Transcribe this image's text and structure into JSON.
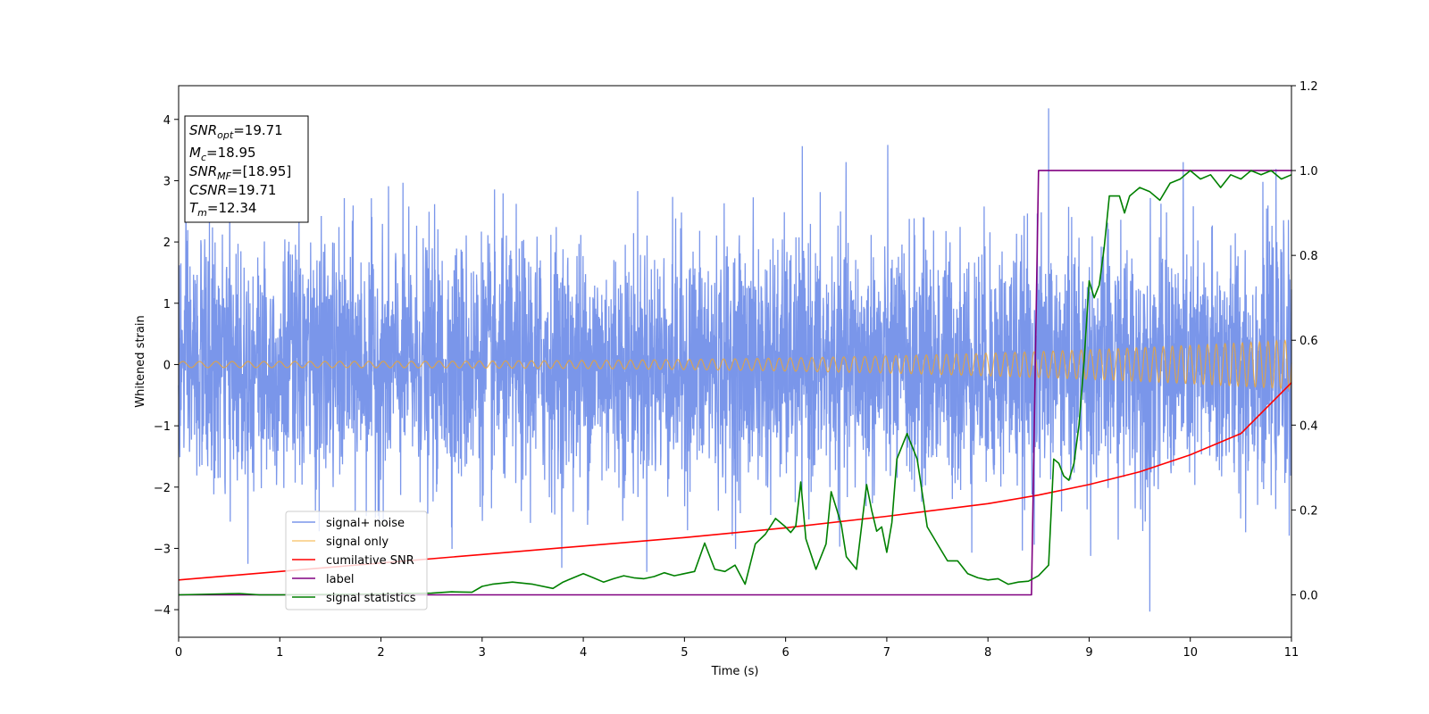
{
  "chart_data": {
    "type": "line",
    "title": "",
    "xlabel": "Time (s)",
    "ylabel": "Whitened strain",
    "y2label": "",
    "xlim": [
      0,
      11
    ],
    "ylim": [
      -4.45,
      4.55
    ],
    "y2lim": [
      -0.1,
      1.2
    ],
    "x_ticks": [
      0,
      1,
      2,
      3,
      4,
      5,
      6,
      7,
      8,
      9,
      10,
      11
    ],
    "y_ticks": [
      -4,
      -3,
      -2,
      -1,
      0,
      1,
      2,
      3,
      4
    ],
    "y2_ticks": [
      "0.0",
      "0.2",
      "0.4",
      "0.6",
      "0.8",
      "1.0",
      "1.2"
    ],
    "grid": false,
    "legend_position": "lower-left",
    "annotation": {
      "lines": [
        {
          "sym": "SNR",
          "sub": "opt",
          "rest": "=19.71"
        },
        {
          "sym": "M",
          "sub": "c",
          "rest": "=18.95"
        },
        {
          "sym": "SNR",
          "sub": "MF",
          "rest": "=[18.95]"
        },
        {
          "sym": "CSNR",
          "sub": "",
          "rest": "=19.71"
        },
        {
          "sym": "T",
          "sub": "m",
          "rest": "=12.34"
        }
      ]
    },
    "series": [
      {
        "name": "signal+ noise",
        "axis": "left",
        "color": "#4169e1",
        "render": "noise",
        "noise_sigma": 1.0,
        "noise_peak_extremes": {
          "max": 4.18,
          "min": -4.03
        }
      },
      {
        "name": "signal only",
        "axis": "left",
        "color": "#f5a623",
        "render": "chirp",
        "chirp": {
          "amplitude_start": 0.05,
          "amplitude_end": 0.4,
          "cycles_per_second_start": 6,
          "cycles_per_second_end": 12
        }
      },
      {
        "name": "cumilative SNR",
        "axis": "right",
        "color": "#ff0000",
        "x": [
          0,
          1,
          2,
          3,
          4,
          5,
          6,
          7,
          8,
          8.5,
          9,
          9.5,
          10,
          10.5,
          11
        ],
        "values": [
          0.035,
          0.055,
          0.075,
          0.095,
          0.115,
          0.135,
          0.158,
          0.185,
          0.215,
          0.235,
          0.26,
          0.29,
          0.33,
          0.38,
          0.5
        ]
      },
      {
        "name": "label",
        "axis": "right",
        "color": "#800080",
        "x": [
          0,
          8.43,
          8.5,
          11
        ],
        "values": [
          0.0,
          0.0,
          1.0,
          1.0
        ]
      },
      {
        "name": "signal statistics",
        "axis": "right",
        "color": "#008000",
        "x": [
          0,
          0.4,
          0.6,
          0.8,
          1.0,
          1.5,
          2.0,
          2.5,
          2.7,
          2.9,
          3.0,
          3.1,
          3.3,
          3.5,
          3.7,
          3.8,
          4.0,
          4.1,
          4.2,
          4.3,
          4.4,
          4.5,
          4.6,
          4.7,
          4.8,
          4.9,
          5.0,
          5.1,
          5.2,
          5.3,
          5.4,
          5.5,
          5.6,
          5.7,
          5.8,
          5.9,
          6.0,
          6.05,
          6.1,
          6.15,
          6.2,
          6.3,
          6.4,
          6.45,
          6.5,
          6.55,
          6.6,
          6.7,
          6.8,
          6.85,
          6.9,
          6.95,
          7.0,
          7.05,
          7.1,
          7.2,
          7.3,
          7.35,
          7.4,
          7.45,
          7.5,
          7.6,
          7.7,
          7.8,
          7.9,
          8.0,
          8.1,
          8.2,
          8.3,
          8.4,
          8.5,
          8.6,
          8.65,
          8.7,
          8.75,
          8.8,
          8.85,
          8.9,
          8.95,
          9.0,
          9.05,
          9.1,
          9.15,
          9.2,
          9.3,
          9.35,
          9.4,
          9.5,
          9.6,
          9.7,
          9.8,
          9.9,
          10.0,
          10.1,
          10.2,
          10.3,
          10.4,
          10.5,
          10.6,
          10.7,
          10.8,
          10.9,
          11.0
        ],
        "values": [
          0.0,
          0.002,
          0.003,
          0.0,
          0.0,
          0.001,
          0.002,
          0.004,
          0.007,
          0.006,
          0.02,
          0.025,
          0.03,
          0.025,
          0.015,
          0.03,
          0.05,
          0.04,
          0.03,
          0.038,
          0.045,
          0.04,
          0.038,
          0.043,
          0.052,
          0.045,
          0.05,
          0.055,
          0.122,
          0.06,
          0.055,
          0.07,
          0.025,
          0.12,
          0.143,
          0.18,
          0.16,
          0.147,
          0.162,
          0.266,
          0.132,
          0.06,
          0.12,
          0.243,
          0.205,
          0.166,
          0.09,
          0.06,
          0.26,
          0.2,
          0.15,
          0.16,
          0.1,
          0.17,
          0.32,
          0.38,
          0.32,
          0.24,
          0.16,
          0.14,
          0.12,
          0.08,
          0.08,
          0.05,
          0.04,
          0.035,
          0.038,
          0.025,
          0.03,
          0.032,
          0.045,
          0.07,
          0.32,
          0.31,
          0.28,
          0.27,
          0.31,
          0.4,
          0.55,
          0.74,
          0.7,
          0.73,
          0.82,
          0.94,
          0.94,
          0.9,
          0.94,
          0.96,
          0.95,
          0.93,
          0.97,
          0.98,
          1.0,
          0.98,
          0.99,
          0.96,
          0.99,
          0.98,
          1.0,
          0.99,
          1.0,
          0.98,
          0.99
        ]
      }
    ]
  }
}
